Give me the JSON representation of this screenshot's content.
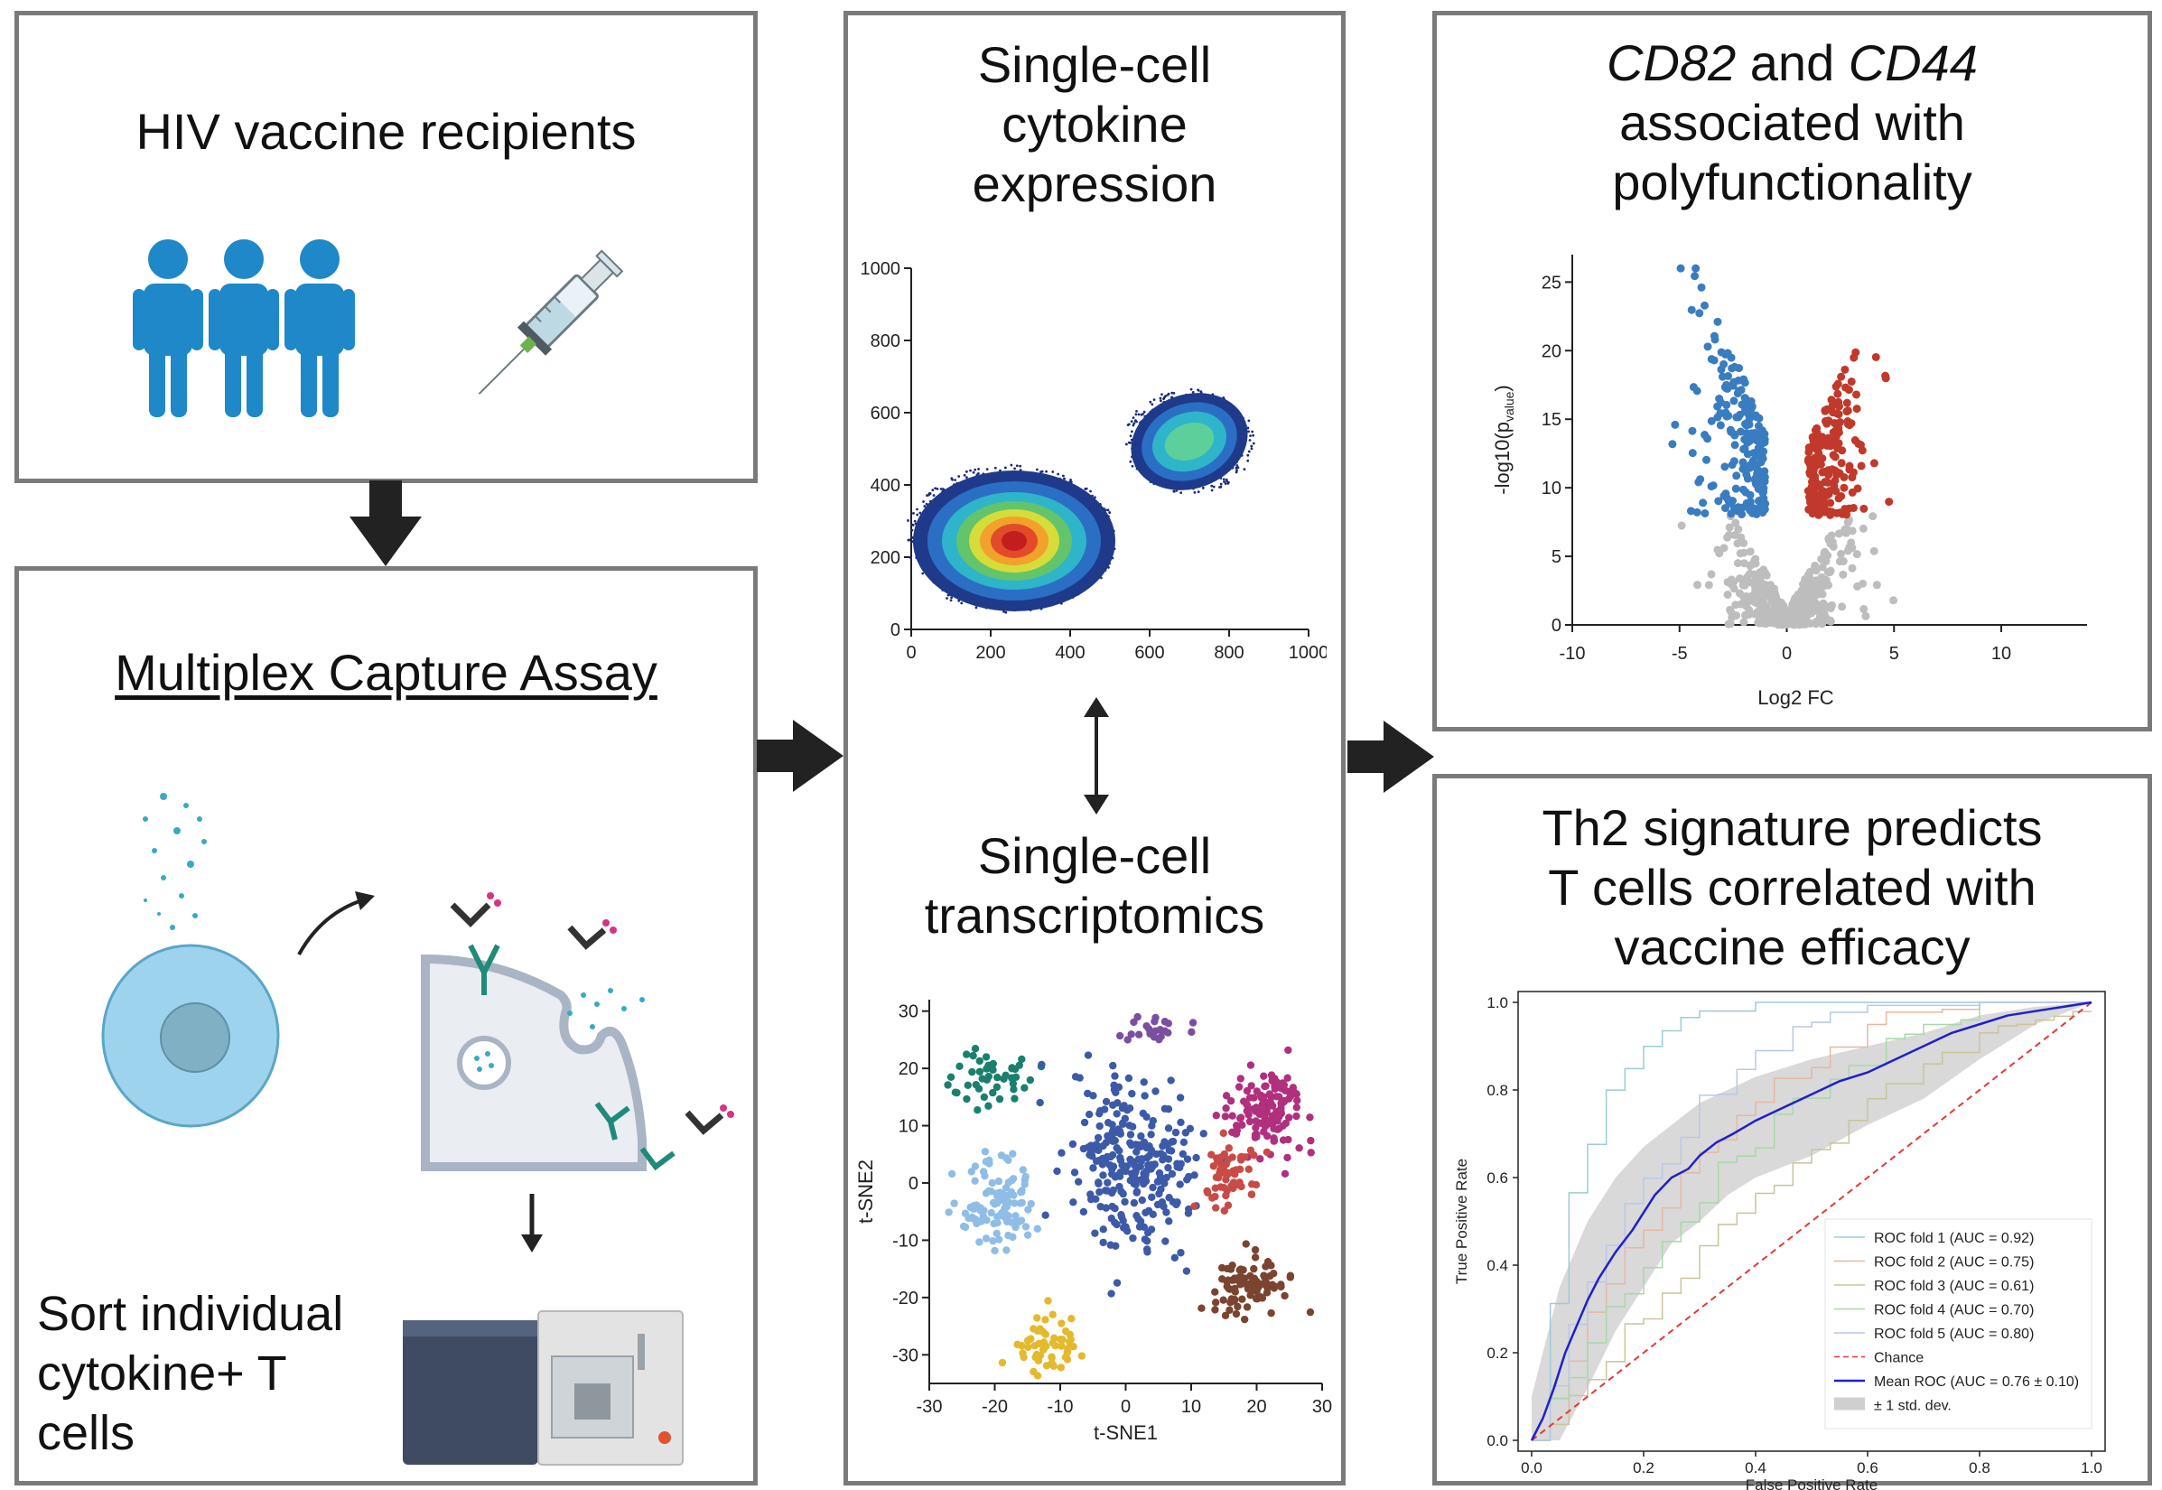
{
  "panels": {
    "recipients": {
      "title": "HIV vaccine recipients"
    },
    "assay": {
      "title": "Multiplex Capture Assay",
      "sort_label_lines": [
        "Sort individual",
        "cytokine+  T",
        "cells"
      ]
    },
    "cytokine": {
      "title_lines": [
        "Single-cell",
        "cytokine",
        "expression"
      ]
    },
    "transcriptomics": {
      "title_lines": [
        "Single-cell",
        "transcriptomics"
      ]
    },
    "volcano": {
      "title_line1_a": "CD82",
      "title_line1_b": " and ",
      "title_line1_c": "CD44",
      "title_line2": "associated with",
      "title_line3": "polyfunctionality"
    },
    "roc": {
      "title_lines": [
        "Th2 signature predicts",
        "T cells correlated with",
        "vaccine efficacy"
      ]
    }
  },
  "colors": {
    "person": "#1e88c8",
    "cell": "#9ed3ee",
    "up": "#c0392b",
    "down": "#3a7cc0",
    "ns": "#bdbdbd",
    "mean_roc": "#1f1fd0",
    "chance": "#e53935"
  },
  "chart_data": [
    {
      "type": "heatmap",
      "xlim": [
        0,
        1000
      ],
      "ylim": [
        0,
        1000
      ],
      "x_ticks": [
        "0",
        "200",
        "400",
        "600",
        "800",
        "1000"
      ],
      "y_ticks": [
        "0",
        "200",
        "400",
        "600",
        "800",
        "1000"
      ],
      "populations": [
        {
          "x": 250,
          "y": 250
        },
        {
          "x": 700,
          "y": 520
        }
      ]
    },
    {
      "type": "scatter",
      "xlabel": "t-SNE1",
      "ylabel": "t-SNE2",
      "xlim": [
        -30,
        30
      ],
      "ylim": [
        -35,
        32
      ],
      "x_ticks": [
        "-30",
        "-20",
        "-10",
        "0",
        "10",
        "20",
        "30"
      ],
      "y_ticks": [
        "-30",
        "-20",
        "-10",
        "0",
        "10",
        "20",
        "30"
      ],
      "clusters": [
        {
          "color": "#1b7f6e",
          "x": -21,
          "y": 18
        },
        {
          "color": "#7a4fa0",
          "x": 5,
          "y": 27
        },
        {
          "color": "#3d5aa8",
          "x": 1,
          "y": 3
        },
        {
          "color": "#b0307e",
          "x": 22,
          "y": 12
        },
        {
          "color": "#8fbde6",
          "x": -20,
          "y": -3
        },
        {
          "color": "#c94a46",
          "x": 16,
          "y": 2
        },
        {
          "color": "#7a4430",
          "x": 19,
          "y": -18
        },
        {
          "color": "#e3b92e",
          "x": -12,
          "y": -28
        }
      ]
    },
    {
      "type": "scatter",
      "xlabel": "Log2 FC",
      "ylabel": "-log10(p",
      "ylabel_sub": "value",
      "ylabel_close": ")",
      "xlim": [
        -10,
        14
      ],
      "ylim": [
        0,
        27
      ],
      "x_ticks": [
        "-10",
        "-5",
        "0",
        "5",
        "10"
      ],
      "y_ticks": [
        "0",
        "5",
        "10",
        "15",
        "20",
        "25"
      ]
    },
    {
      "type": "line",
      "xlabel": "False Positive Rate",
      "ylabel": "True Positive Rate",
      "xlim": [
        0,
        1
      ],
      "ylim": [
        0,
        1
      ],
      "x_ticks": [
        "0.0",
        "0.2",
        "0.4",
        "0.6",
        "0.8",
        "1.0"
      ],
      "y_ticks": [
        "0.0",
        "0.2",
        "0.4",
        "0.6",
        "0.8",
        "1.0"
      ],
      "series": [
        {
          "name": "ROC fold 1 (AUC = 0.92)",
          "color": "#9ccbd8"
        },
        {
          "name": "ROC fold 2 (AUC = 0.75)",
          "color": "#e6b8a2"
        },
        {
          "name": "ROC fold 3 (AUC = 0.61)",
          "color": "#c9c49a"
        },
        {
          "name": "ROC fold 4 (AUC = 0.70)",
          "color": "#a8d8a8"
        },
        {
          "name": "ROC fold 5 (AUC = 0.80)",
          "color": "#b8c8e8"
        },
        {
          "name": "Chance",
          "color": "#e53935"
        },
        {
          "name": "Mean ROC (AUC = 0.76 ± 0.10)",
          "color": "#1f1fd0"
        },
        {
          "name": "± 1 std. dev.",
          "color": "#cfcfcf"
        }
      ],
      "mean_roc": {
        "x": [
          0,
          0.02,
          0.04,
          0.06,
          0.08,
          0.1,
          0.12,
          0.15,
          0.18,
          0.2,
          0.22,
          0.25,
          0.28,
          0.3,
          0.33,
          0.36,
          0.4,
          0.45,
          0.5,
          0.55,
          0.6,
          0.65,
          0.7,
          0.75,
          0.8,
          0.85,
          0.9,
          0.95,
          1.0
        ],
        "y": [
          0,
          0.05,
          0.12,
          0.2,
          0.26,
          0.32,
          0.37,
          0.43,
          0.48,
          0.52,
          0.56,
          0.6,
          0.62,
          0.65,
          0.68,
          0.7,
          0.73,
          0.76,
          0.79,
          0.82,
          0.84,
          0.87,
          0.9,
          0.93,
          0.95,
          0.97,
          0.98,
          0.99,
          1.0
        ]
      },
      "std_band": {
        "x": [
          0,
          0.05,
          0.1,
          0.15,
          0.2,
          0.25,
          0.3,
          0.35,
          0.4,
          0.5,
          0.6,
          0.7,
          0.8,
          0.9,
          1.0
        ],
        "upper": [
          0.1,
          0.35,
          0.5,
          0.6,
          0.67,
          0.72,
          0.77,
          0.8,
          0.83,
          0.87,
          0.9,
          0.93,
          0.97,
          0.99,
          1.0
        ],
        "lower": [
          0.0,
          0.0,
          0.12,
          0.25,
          0.35,
          0.45,
          0.5,
          0.56,
          0.6,
          0.65,
          0.72,
          0.78,
          0.87,
          0.95,
          1.0
        ]
      }
    }
  ]
}
